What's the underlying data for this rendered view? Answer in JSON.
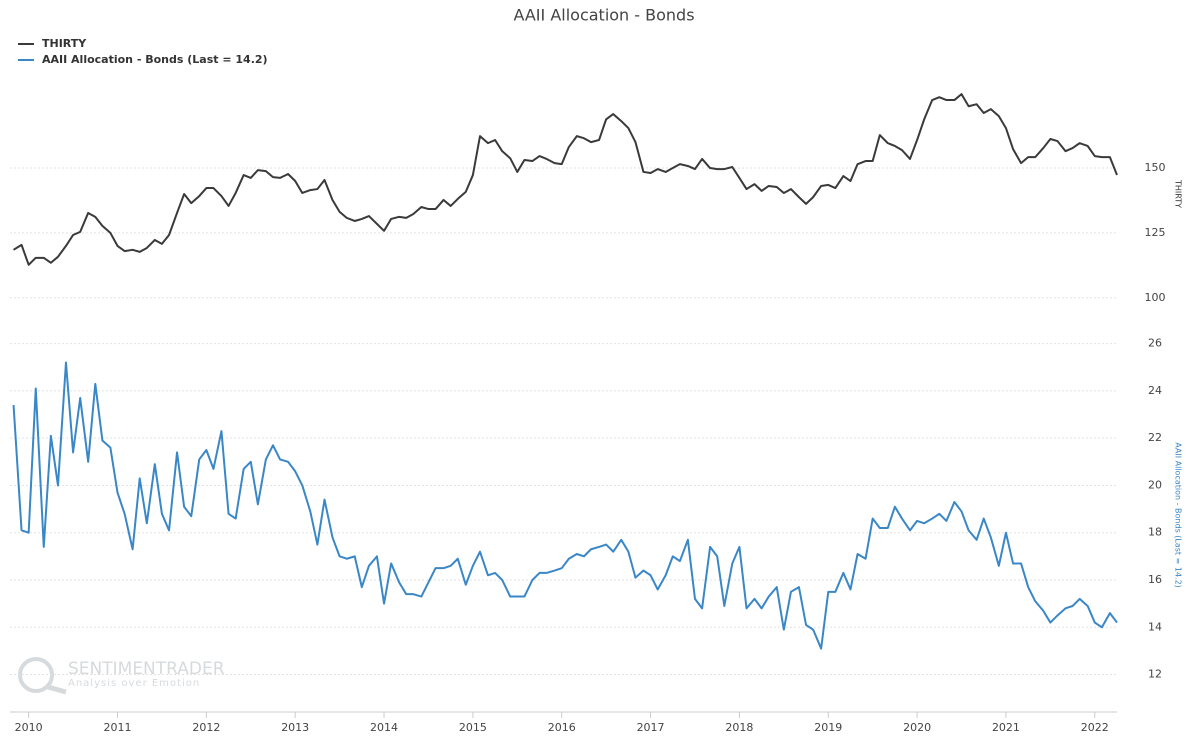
{
  "chart_data": [
    {
      "type": "line",
      "title": "AAII Allocation - Bonds",
      "x": [
        2009.83,
        2009.92,
        2010,
        2010.08,
        2010.17,
        2010.25,
        2010.33,
        2010.42,
        2010.5,
        2010.58,
        2010.67,
        2010.75,
        2010.83,
        2010.92,
        2011,
        2011.08,
        2011.17,
        2011.25,
        2011.33,
        2011.42,
        2011.5,
        2011.58,
        2011.67,
        2011.75,
        2011.83,
        2011.92,
        2012,
        2012.08,
        2012.17,
        2012.25,
        2012.33,
        2012.42,
        2012.5,
        2012.58,
        2012.67,
        2012.75,
        2012.83,
        2012.92,
        2013,
        2013.08,
        2013.17,
        2013.25,
        2013.33,
        2013.42,
        2013.5,
        2013.58,
        2013.67,
        2013.75,
        2013.83,
        2013.92,
        2014,
        2014.08,
        2014.17,
        2014.25,
        2014.33,
        2014.42,
        2014.5,
        2014.58,
        2014.67,
        2014.75,
        2014.83,
        2014.92,
        2015,
        2015.08,
        2015.17,
        2015.25,
        2015.33,
        2015.42,
        2015.5,
        2015.58,
        2015.67,
        2015.75,
        2015.83,
        2015.92,
        2016,
        2016.08,
        2016.17,
        2016.25,
        2016.33,
        2016.42,
        2016.5,
        2016.58,
        2016.67,
        2016.75,
        2016.83,
        2016.92,
        2017,
        2017.08,
        2017.17,
        2017.25,
        2017.33,
        2017.42,
        2017.5,
        2017.58,
        2017.67,
        2017.75,
        2017.83,
        2017.92,
        2018,
        2018.08,
        2018.17,
        2018.25,
        2018.33,
        2018.42,
        2018.5,
        2018.58,
        2018.67,
        2018.75,
        2018.83,
        2018.92,
        2019,
        2019.08,
        2019.17,
        2019.25,
        2019.33,
        2019.42,
        2019.5,
        2019.58,
        2019.67,
        2019.75,
        2019.83,
        2019.92,
        2020,
        2020.08,
        2020.17,
        2020.25,
        2020.33,
        2020.42,
        2020.5,
        2020.58,
        2020.67,
        2020.75,
        2020.83,
        2020.92,
        2021,
        2021.08,
        2021.17,
        2021.25,
        2021.33,
        2021.42,
        2021.5,
        2021.58,
        2021.67,
        2021.75,
        2021.83,
        2021.92,
        2022,
        2022.08,
        2022.17,
        2022.25
      ],
      "series": [
        {
          "name": "THIRTY",
          "color": "#3a3a3a",
          "values": [
            118.5,
            120.4,
            112.7,
            115.4,
            115.4,
            113.5,
            115.8,
            120,
            124.2,
            125.4,
            132.7,
            131.2,
            127.7,
            125,
            120,
            118,
            118.5,
            117.7,
            119.2,
            122.3,
            120.8,
            124.2,
            132.7,
            140,
            136.5,
            139.2,
            142.3,
            142.3,
            139.2,
            135.4,
            140.4,
            147.3,
            146.2,
            149.2,
            148.8,
            146.5,
            146.2,
            147.7,
            145,
            140.4,
            141.5,
            141.9,
            145.4,
            137.7,
            133.1,
            130.8,
            129.6,
            130.4,
            131.5,
            128.5,
            125.8,
            130.4,
            131.2,
            130.8,
            132.3,
            135,
            134.2,
            134.2,
            137.7,
            135.4,
            138.1,
            140.8,
            147.3,
            162.3,
            159.6,
            160.8,
            156.5,
            153.8,
            148.5,
            153.1,
            152.7,
            154.6,
            153.5,
            151.9,
            151.5,
            158.1,
            162.3,
            161.5,
            160,
            160.8,
            168.8,
            170.8,
            168.1,
            165.4,
            160,
            148.5,
            148.1,
            149.6,
            148.5,
            150,
            151.5,
            150.8,
            149.6,
            153.5,
            150,
            149.6,
            149.6,
            150.4,
            146.2,
            141.9,
            143.8,
            141.2,
            143.1,
            142.7,
            140.4,
            141.9,
            138.8,
            136.2,
            138.8,
            143.1,
            143.5,
            142.3,
            146.9,
            145,
            151.5,
            152.7,
            152.7,
            162.7,
            159.6,
            158.5,
            156.9,
            153.5,
            160.8,
            168.8,
            176.2,
            177.3,
            176.2,
            176.2,
            178.5,
            173.8,
            174.6,
            171.2,
            172.7,
            170,
            165.4,
            157.3,
            151.9,
            154.2,
            154.2,
            157.7,
            161.2,
            160.4,
            156.5,
            157.7,
            159.6,
            158.5,
            154.6,
            154.2,
            154.2,
            147.3
          ]
        }
      ],
      "ylabel": "THIRTY",
      "ylim": [
        98,
        182
      ],
      "yticks": [
        100,
        125,
        150
      ],
      "grid": true
    },
    {
      "type": "line",
      "x": [
        2009.83,
        2009.92,
        2010,
        2010.08,
        2010.17,
        2010.25,
        2010.33,
        2010.42,
        2010.5,
        2010.58,
        2010.67,
        2010.75,
        2010.83,
        2010.92,
        2011,
        2011.08,
        2011.17,
        2011.25,
        2011.33,
        2011.42,
        2011.5,
        2011.58,
        2011.67,
        2011.75,
        2011.83,
        2011.92,
        2012,
        2012.08,
        2012.17,
        2012.25,
        2012.33,
        2012.42,
        2012.5,
        2012.58,
        2012.67,
        2012.75,
        2012.83,
        2012.92,
        2013,
        2013.08,
        2013.17,
        2013.25,
        2013.33,
        2013.42,
        2013.5,
        2013.58,
        2013.67,
        2013.75,
        2013.83,
        2013.92,
        2014,
        2014.08,
        2014.17,
        2014.25,
        2014.33,
        2014.42,
        2014.5,
        2014.58,
        2014.67,
        2014.75,
        2014.83,
        2014.92,
        2015,
        2015.08,
        2015.17,
        2015.25,
        2015.33,
        2015.42,
        2015.5,
        2015.58,
        2015.67,
        2015.75,
        2015.83,
        2015.92,
        2016,
        2016.08,
        2016.17,
        2016.25,
        2016.33,
        2016.42,
        2016.5,
        2016.58,
        2016.67,
        2016.75,
        2016.83,
        2016.92,
        2017,
        2017.08,
        2017.17,
        2017.25,
        2017.33,
        2017.42,
        2017.5,
        2017.58,
        2017.67,
        2017.75,
        2017.83,
        2017.92,
        2018,
        2018.08,
        2018.17,
        2018.25,
        2018.33,
        2018.42,
        2018.5,
        2018.58,
        2018.67,
        2018.75,
        2018.83,
        2018.92,
        2019,
        2019.08,
        2019.17,
        2019.25,
        2019.33,
        2019.42,
        2019.5,
        2019.58,
        2019.67,
        2019.75,
        2019.83,
        2019.92,
        2020,
        2020.08,
        2020.17,
        2020.25,
        2020.33,
        2020.42,
        2020.5,
        2020.58,
        2020.67,
        2020.75,
        2020.83,
        2020.92,
        2021,
        2021.08,
        2021.17,
        2021.25,
        2021.33,
        2021.42,
        2021.5,
        2021.58,
        2021.67,
        2021.75,
        2021.83,
        2021.92,
        2022,
        2022.08,
        2022.17,
        2022.25
      ],
      "series": [
        {
          "name": "AAII Allocation - Bonds (Last = 14.2)",
          "color": "#3a87c8",
          "values": [
            23.4,
            18.1,
            18.0,
            24.1,
            17.4,
            22.1,
            20.0,
            25.2,
            21.4,
            23.7,
            21.0,
            24.3,
            21.9,
            21.6,
            19.7,
            18.8,
            17.3,
            20.3,
            18.4,
            20.9,
            18.8,
            18.1,
            21.4,
            19.1,
            18.7,
            21.1,
            21.5,
            20.7,
            22.3,
            18.8,
            18.6,
            20.7,
            21.0,
            19.2,
            21.1,
            21.7,
            21.1,
            21.0,
            20.6,
            20.0,
            18.9,
            17.5,
            19.4,
            17.8,
            17.0,
            16.9,
            17.0,
            15.7,
            16.6,
            17.0,
            15.0,
            16.7,
            15.9,
            15.4,
            15.4,
            15.3,
            15.9,
            16.5,
            16.5,
            16.6,
            16.9,
            15.8,
            16.6,
            17.2,
            16.2,
            16.3,
            16.0,
            15.3,
            15.3,
            15.3,
            16.0,
            16.3,
            16.3,
            16.4,
            16.5,
            16.9,
            17.1,
            17.0,
            17.3,
            17.4,
            17.5,
            17.2,
            17.7,
            17.2,
            16.1,
            16.4,
            16.2,
            15.6,
            16.2,
            17.0,
            16.8,
            17.7,
            15.2,
            14.8,
            17.4,
            17.0,
            14.9,
            16.7,
            17.4,
            14.8,
            15.2,
            14.8,
            15.3,
            15.7,
            13.9,
            15.5,
            15.7,
            14.1,
            13.9,
            13.1,
            15.5,
            15.5,
            16.3,
            15.6,
            17.1,
            16.9,
            18.6,
            18.2,
            18.2,
            19.1,
            18.6,
            18.1,
            18.5,
            18.4,
            18.6,
            18.8,
            18.5,
            19.3,
            18.9,
            18.1,
            17.7,
            18.6,
            17.8,
            16.6,
            18.0,
            16.7,
            16.7,
            15.7,
            15.1,
            14.7,
            14.2,
            14.5,
            14.8,
            14.9,
            15.2,
            14.9,
            14.2,
            14.0,
            14.6,
            14.2
          ]
        }
      ],
      "ylabel": "AAII Allocation - Bonds (Last = 14.2)",
      "ylim": [
        10.5,
        27
      ],
      "yticks": [
        12,
        14,
        16,
        18,
        20,
        22,
        24,
        26
      ],
      "grid": true,
      "xlim": [
        2009.79,
        2022.25
      ],
      "xticks": [
        2010,
        2011,
        2012,
        2013,
        2014,
        2015,
        2016,
        2017,
        2018,
        2019,
        2020,
        2021,
        2022
      ]
    }
  ],
  "watermark": {
    "brand": "SENTIMENTRADER",
    "tagline": "Analysis over Emotion"
  }
}
